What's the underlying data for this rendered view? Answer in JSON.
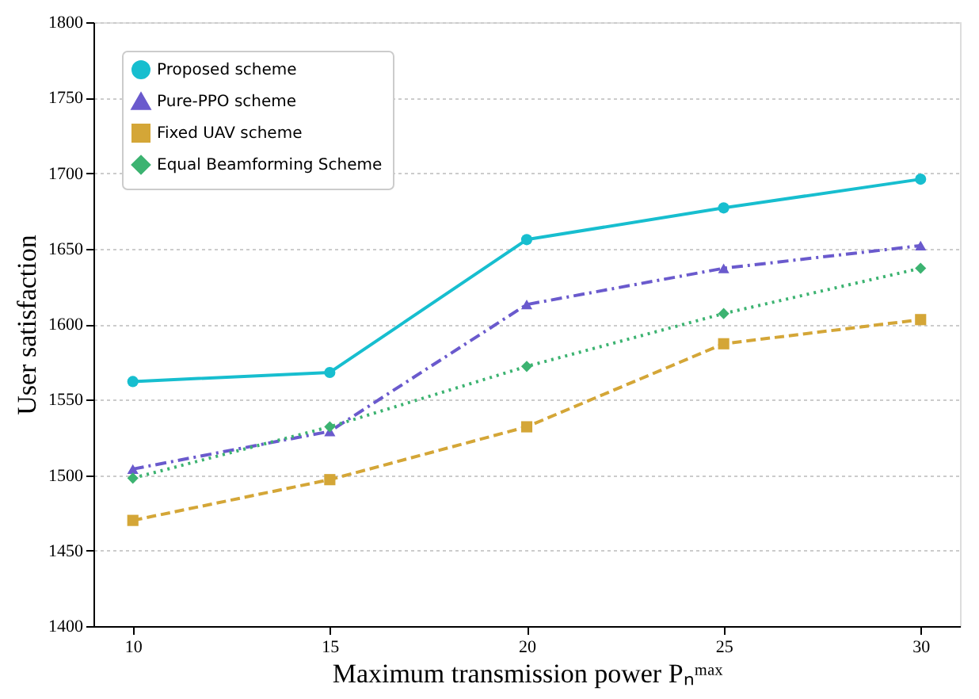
{
  "chart_data": {
    "type": "line",
    "xlabel": "Maximum transmission power Pₙᵐᵃˣ",
    "ylabel": "User satisfaction",
    "x": [
      10,
      15,
      20,
      25,
      30
    ],
    "series": [
      {
        "name": "Proposed scheme",
        "color": "#17becf",
        "marker": "circle",
        "line_style": "solid",
        "values": [
          1562,
          1568,
          1656,
          1677,
          1696
        ]
      },
      {
        "name": "Pure-PPO scheme",
        "color": "#6a5acd",
        "marker": "triangle",
        "line_style": "dashdot",
        "values": [
          1504,
          1529,
          1613,
          1637,
          1652
        ]
      },
      {
        "name": "Fixed UAV scheme",
        "color": "#d4a637",
        "marker": "square",
        "line_style": "dashed",
        "values": [
          1470,
          1497,
          1532,
          1587,
          1603
        ]
      },
      {
        "name": "Equal Beamforming Scheme",
        "color": "#3cb371",
        "marker": "diamond",
        "line_style": "dotted",
        "values": [
          1498,
          1532,
          1572,
          1607,
          1637
        ]
      }
    ],
    "xlim": [
      9,
      31
    ],
    "xticks": [
      10,
      15,
      20,
      25,
      30
    ],
    "ylim": [
      1400,
      1800
    ],
    "yticks": [
      1400,
      1450,
      1500,
      1550,
      1600,
      1650,
      1700,
      1750,
      1800
    ],
    "grid": "y",
    "legend": "top left"
  }
}
